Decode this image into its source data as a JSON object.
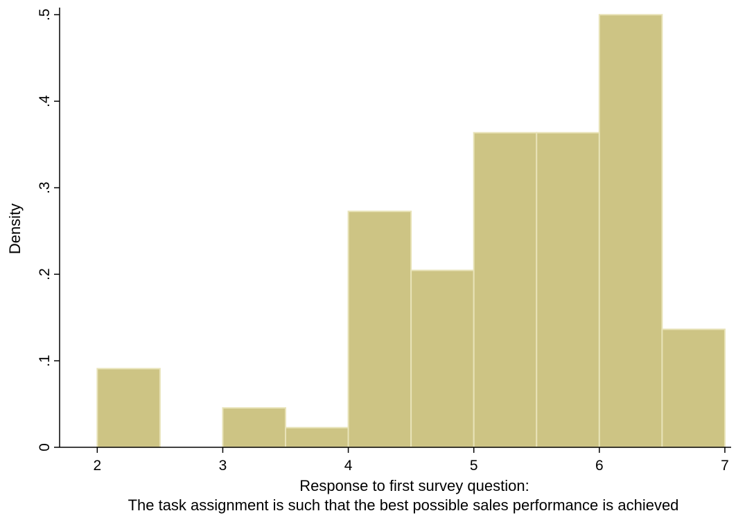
{
  "colors": {
    "bar_fill": "#cdc484",
    "bar_stroke": "#e8e3b8",
    "axis": "#000000",
    "background": "#ffffff"
  },
  "chart_data": {
    "type": "bar",
    "title": "",
    "ylabel": "Density",
    "xlabel_lines": [
      "Response to first survey question:",
      "The task assignment is such that the best possible sales performance is achieved"
    ],
    "bin_width": 0.5,
    "bins": [
      {
        "start": 2.0,
        "end": 2.5,
        "value": 0.0909
      },
      {
        "start": 3.0,
        "end": 3.5,
        "value": 0.0455
      },
      {
        "start": 3.5,
        "end": 4.0,
        "value": 0.0227
      },
      {
        "start": 4.0,
        "end": 4.5,
        "value": 0.2727
      },
      {
        "start": 4.5,
        "end": 5.0,
        "value": 0.2045
      },
      {
        "start": 5.0,
        "end": 5.5,
        "value": 0.3636
      },
      {
        "start": 5.5,
        "end": 6.0,
        "value": 0.3636
      },
      {
        "start": 6.0,
        "end": 6.5,
        "value": 0.5
      },
      {
        "start": 6.5,
        "end": 7.0,
        "value": 0.1364
      }
    ],
    "xlim": [
      1.7,
      7.05
    ],
    "ylim": [
      0,
      0.505
    ],
    "x_ticks": [
      {
        "v": 2,
        "label": "2"
      },
      {
        "v": 3,
        "label": "3"
      },
      {
        "v": 4,
        "label": "4"
      },
      {
        "v": 5,
        "label": "5"
      },
      {
        "v": 6,
        "label": "6"
      },
      {
        "v": 7,
        "label": "7"
      }
    ],
    "y_ticks": [
      {
        "v": 0,
        "label": "0"
      },
      {
        "v": 0.1,
        "label": ".1"
      },
      {
        "v": 0.2,
        "label": ".2"
      },
      {
        "v": 0.3,
        "label": ".3"
      },
      {
        "v": 0.4,
        "label": ".4"
      },
      {
        "v": 0.5,
        "label": ".5"
      }
    ],
    "grid": false,
    "legend": "none"
  }
}
